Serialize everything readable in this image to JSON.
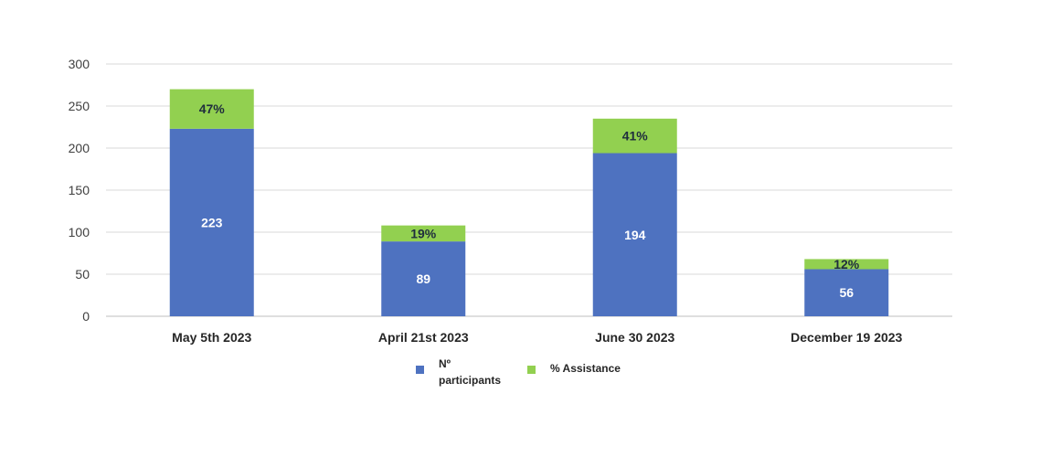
{
  "chart_data": {
    "type": "bar",
    "stacked": true,
    "categories": [
      "May 5th 2023",
      "April 21st 2023",
      "June 30 2023",
      "December 19 2023"
    ],
    "series": [
      {
        "name": "Nº participants",
        "color": "#4e72c0",
        "values": [
          223,
          89,
          194,
          56
        ],
        "labels": [
          "223",
          "89",
          "194",
          "56"
        ]
      },
      {
        "name": "% Assistance",
        "color": "#92d050",
        "values": [
          47,
          19,
          41,
          12
        ],
        "labels": [
          "47%",
          "19%",
          "41%",
          "12%"
        ]
      }
    ],
    "ylim": [
      0,
      300
    ],
    "yticks": [
      "0",
      "50",
      "100",
      "150",
      "200",
      "250",
      "300"
    ],
    "title": "",
    "xlabel": "",
    "ylabel": "",
    "grid": true,
    "legend_position": "bottom",
    "legend": {
      "participants_line1": "Nº",
      "participants_line2": "participants",
      "assistance": "% Assistance"
    }
  }
}
